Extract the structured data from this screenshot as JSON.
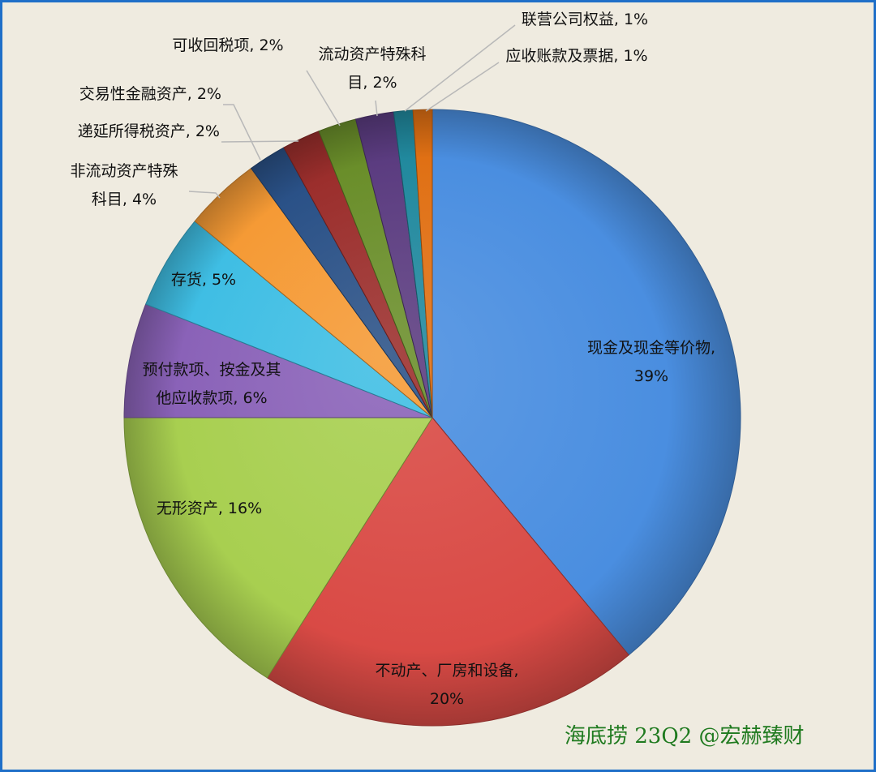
{
  "chart_data": {
    "type": "pie",
    "title": "",
    "start_angle_deg": 0,
    "direction": "clockwise",
    "slices": [
      {
        "label_lines": [
          "现金及现金等价物,",
          "39%"
        ],
        "category": "现金及现金等价物",
        "value": 39,
        "color": "#4a8ee0"
      },
      {
        "label_lines": [
          "不动产、厂房和设备,",
          "20%"
        ],
        "category": "不动产、厂房和设备",
        "value": 20,
        "color": "#d94a45"
      },
      {
        "label_lines": [
          "无形资产, 16%"
        ],
        "category": "无形资产",
        "value": 16,
        "color": "#a8cf50"
      },
      {
        "label_lines": [
          "预付款项、按金及其",
          "他应收款项, 6%"
        ],
        "category": "预付款项、按金及其他应收款项",
        "value": 6,
        "color": "#8a62b8"
      },
      {
        "label_lines": [
          "存货, 5%"
        ],
        "category": "存货",
        "value": 5,
        "color": "#3fbee4"
      },
      {
        "label_lines": [
          "非流动资产特殊",
          "科目, 4%"
        ],
        "category": "非流动资产特殊科目",
        "value": 4,
        "color": "#f59a35"
      },
      {
        "label_lines": [
          "交易性金融资产, 2%"
        ],
        "category": "交易性金融资产",
        "value": 2,
        "color": "#2a5187"
      },
      {
        "label_lines": [
          "递延所得税资产, 2%"
        ],
        "category": "递延所得税资产",
        "value": 2,
        "color": "#9b2e2c"
      },
      {
        "label_lines": [
          "可收回税项, 2%"
        ],
        "category": "可收回税项",
        "value": 2,
        "color": "#6a8e2a"
      },
      {
        "label_lines": [
          "流动资产特殊科",
          "目, 2%"
        ],
        "category": "流动资产特殊科目",
        "value": 2,
        "color": "#5b3c80"
      },
      {
        "label_lines": [
          "联营公司权益, 1%"
        ],
        "category": "联营公司权益",
        "value": 1,
        "color": "#21899e"
      },
      {
        "label_lines": [
          "应收账款及票据, 1%"
        ],
        "category": "应收账款及票据",
        "value": 1,
        "color": "#e07014"
      }
    ]
  },
  "watermark": "海底捞 23Q2 @宏赫臻财"
}
